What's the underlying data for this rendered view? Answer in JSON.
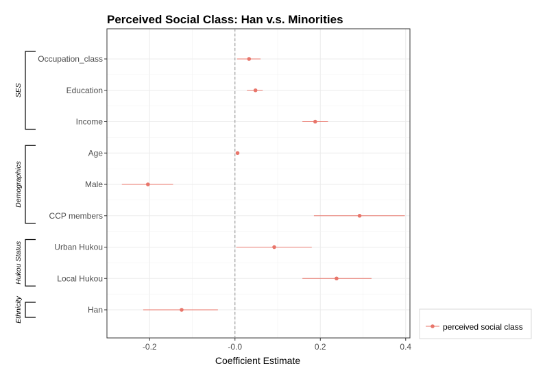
{
  "chart_data": {
    "type": "scatter",
    "title": "Perceived Social Class: Han v.s. Minorities",
    "xlabel": "Coefficient Estimate",
    "ylabel": "",
    "xlim": [
      -0.3,
      0.41
    ],
    "x_ticks": [
      -0.2,
      -0.0,
      0.2,
      0.4
    ],
    "x_tick_labels": [
      "-0.2",
      "-0.0",
      "0.2",
      "0.4"
    ],
    "reference_line_x": 0,
    "grid": true,
    "legend_position": "bottom-right",
    "series": [
      {
        "name": "perceived social class",
        "color": "#e8756a",
        "points": [
          {
            "label": "Occupation_class",
            "estimate": 0.033,
            "low": 0.005,
            "high": 0.06
          },
          {
            "label": "Education",
            "estimate": 0.048,
            "low": 0.028,
            "high": 0.065
          },
          {
            "label": "Income",
            "estimate": 0.188,
            "low": 0.158,
            "high": 0.218
          },
          {
            "label": "Age",
            "estimate": 0.006,
            "low": 0.003,
            "high": 0.009
          },
          {
            "label": "Male",
            "estimate": -0.204,
            "low": -0.265,
            "high": -0.145
          },
          {
            "label": "CCP members",
            "estimate": 0.292,
            "low": 0.185,
            "high": 0.398
          },
          {
            "label": "Urban Hukou",
            "estimate": 0.092,
            "low": 0.003,
            "high": 0.18
          },
          {
            "label": "Local Hukou",
            "estimate": 0.238,
            "low": 0.158,
            "high": 0.32
          },
          {
            "label": "Han",
            "estimate": -0.125,
            "low": -0.215,
            "high": -0.04
          }
        ]
      }
    ],
    "groups": [
      {
        "name": "SES",
        "members": [
          "Occupation_class",
          "Education",
          "Income"
        ]
      },
      {
        "name": "Demographics",
        "members": [
          "Age",
          "Male",
          "CCP members"
        ]
      },
      {
        "name": "Hukou Status",
        "members": [
          "Urban Hukou",
          "Local Hukou"
        ]
      },
      {
        "name": "Ethnicity",
        "members": [
          "Han"
        ]
      }
    ]
  }
}
